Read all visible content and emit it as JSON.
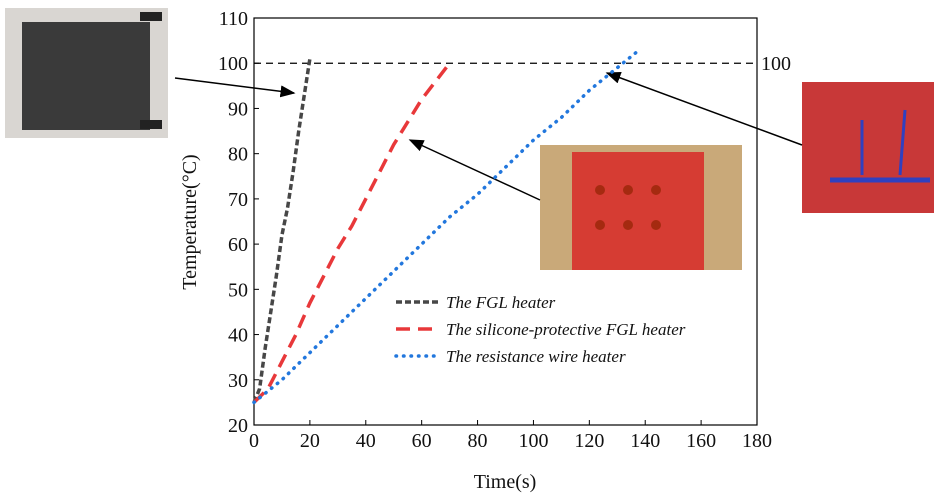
{
  "chart_data": {
    "type": "line",
    "xlabel": "Time(s)",
    "ylabel": "Temperature(°C)",
    "xlim": [
      0,
      180
    ],
    "xticks": [
      0,
      20,
      40,
      60,
      80,
      100,
      120,
      140,
      160,
      180
    ],
    "ylim": [
      20,
      110
    ],
    "yticks": [
      20,
      30,
      40,
      50,
      60,
      70,
      80,
      90,
      100,
      110
    ],
    "hline": 100,
    "series": [
      {
        "name": "The FGL heater",
        "color": "#474747",
        "x": [
          0,
          2,
          4,
          6,
          8,
          10,
          12,
          14,
          16,
          18,
          20
        ],
        "values": [
          25,
          28,
          37,
          45,
          53,
          62,
          68,
          76,
          85,
          93,
          101
        ]
      },
      {
        "name": "The silicone-protective FGL heater",
        "color": "#e8383a",
        "x": [
          0,
          5,
          10,
          15,
          20,
          25,
          30,
          35,
          40,
          45,
          50,
          55,
          60,
          65,
          70
        ],
        "values": [
          25,
          28,
          34,
          40,
          47,
          53,
          59,
          64,
          70,
          76,
          82,
          87,
          92,
          96,
          100
        ]
      },
      {
        "name": "The resistance wire heater",
        "color": "#2277dd",
        "x": [
          0,
          10,
          15,
          20,
          30,
          40,
          50,
          60,
          70,
          80,
          90,
          100,
          110,
          120,
          130,
          138
        ],
        "values": [
          25,
          30,
          33,
          36,
          42,
          48,
          54,
          60,
          66,
          71,
          77,
          83,
          88,
          94,
          99,
          103
        ]
      }
    ]
  }
}
